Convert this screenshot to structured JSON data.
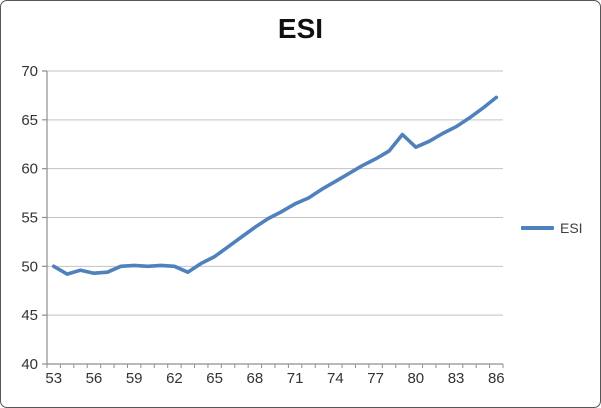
{
  "window": {
    "background": "#ffffff",
    "border_color": "#565656"
  },
  "title": "ESI",
  "legend": {
    "label": "ESI"
  },
  "colors": {
    "line": "#4F81BD",
    "gridline": "#C3C3C3",
    "axis": "#8F8F8F",
    "tick_label": "#333333",
    "title": "#111111"
  },
  "chart_data": {
    "type": "line",
    "title": "ESI",
    "x": [
      53,
      54,
      55,
      56,
      57,
      58,
      59,
      60,
      61,
      62,
      63,
      64,
      65,
      66,
      67,
      68,
      69,
      70,
      71,
      72,
      73,
      74,
      75,
      76,
      77,
      78,
      79,
      80,
      81,
      82,
      83,
      84,
      85,
      86
    ],
    "series": [
      {
        "name": "ESI",
        "color": "#4F81BD",
        "values": [
          50.0,
          49.2,
          49.6,
          49.3,
          49.4,
          50.0,
          50.1,
          50.0,
          50.1,
          50.0,
          49.4,
          50.3,
          51.0,
          52.0,
          53.0,
          54.0,
          54.9,
          55.6,
          56.4,
          57.0,
          57.9,
          58.7,
          59.5,
          60.3,
          61.0,
          61.8,
          63.5,
          62.2,
          62.8,
          63.6,
          64.3,
          65.2,
          66.2,
          67.3
        ]
      }
    ],
    "xlabel": "",
    "ylabel": "",
    "ylim": [
      40,
      70
    ],
    "y_ticks": [
      40,
      45,
      50,
      55,
      60,
      65,
      70
    ],
    "y_tick_labels": [
      "40",
      "45",
      "50",
      "55",
      "60",
      "65",
      "70"
    ],
    "x_tick_labels": [
      "53",
      "56",
      "59",
      "62",
      "65",
      "68",
      "71",
      "74",
      "77",
      "80",
      "83",
      "86"
    ],
    "x_label_interval": 3,
    "x_minor_tick_interval": 1,
    "grid": "horizontal",
    "legend_position": "right"
  }
}
